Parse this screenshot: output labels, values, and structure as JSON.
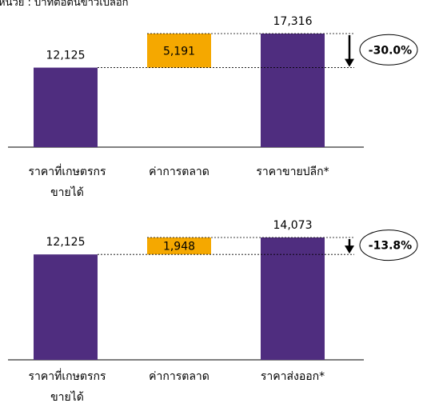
{
  "unit_note": "หน่วย : บาทต่อตันข้าวเปลือก",
  "chart_data": [
    {
      "type": "bar",
      "categories": [
        [
          "ราคาที่เกษตรกร",
          "ขายได้"
        ],
        [
          "ค่าการตลาด"
        ],
        [
          "ราคาขายปลีก*"
        ]
      ],
      "bars": [
        {
          "value": 12125,
          "label": "12,125",
          "base": 0,
          "color": "#4f2d7f"
        },
        {
          "value": 5191,
          "label": "5,191",
          "base": 12125,
          "color": "#f5a800"
        },
        {
          "value": 17316,
          "label": "17,316",
          "base": 0,
          "color": "#4f2d7f"
        }
      ],
      "change_label": "-30.0%",
      "ylim": [
        0,
        17316
      ]
    },
    {
      "type": "bar",
      "categories": [
        [
          "ราคาที่เกษตรกร",
          "ขายได้"
        ],
        [
          "ค่าการตลาด"
        ],
        [
          "ราคาส่งออก*"
        ]
      ],
      "bars": [
        {
          "value": 12125,
          "label": "12,125",
          "base": 0,
          "color": "#4f2d7f"
        },
        {
          "value": 1948,
          "label": "1,948",
          "base": 12125,
          "color": "#f5a800"
        },
        {
          "value": 14073,
          "label": "14,073",
          "base": 0,
          "color": "#4f2d7f"
        }
      ],
      "change_label": "-13.8%",
      "ylim": [
        0,
        14073
      ]
    }
  ]
}
